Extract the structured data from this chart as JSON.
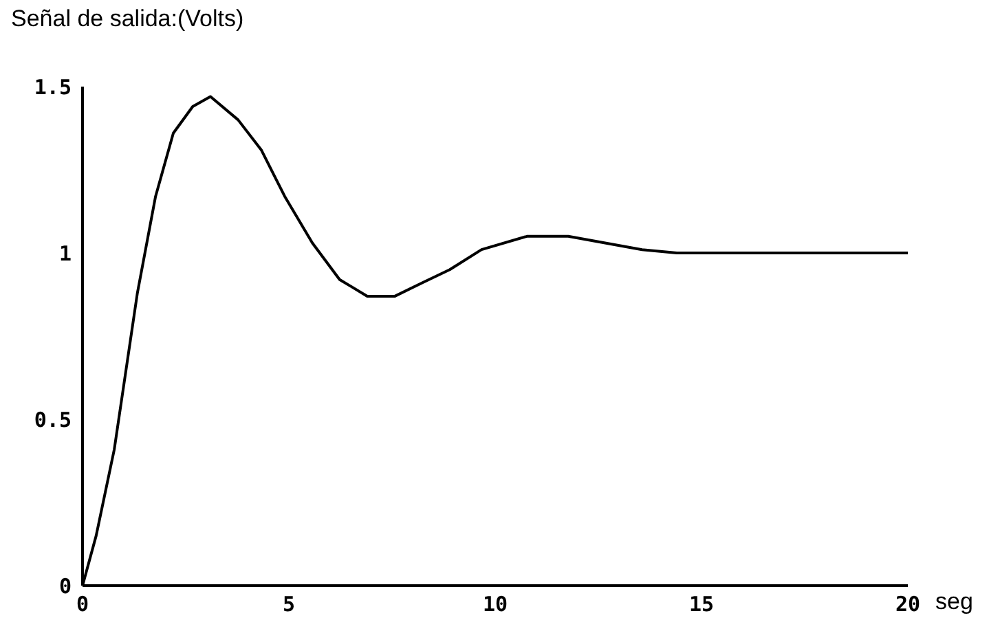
{
  "chart_data": {
    "type": "line",
    "title": "Señal de salida:(Volts)",
    "xlabel": "seg",
    "x": [
      0,
      0.33,
      0.77,
      1.33,
      1.77,
      2.2,
      2.67,
      3.1,
      3.77,
      4.33,
      4.9,
      5.57,
      6.23,
      6.9,
      7.57,
      8.23,
      8.9,
      9.67,
      10.77,
      11.77,
      13.56,
      14.4,
      16.9,
      20
    ],
    "series": [
      {
        "color": "#000000",
        "values": [
          0,
          0.15,
          0.41,
          0.88,
          1.17,
          1.36,
          1.44,
          1.47,
          1.4,
          1.31,
          1.17,
          1.03,
          0.92,
          0.87,
          0.87,
          0.91,
          0.95,
          1.01,
          1.05,
          1.05,
          1.01,
          1.0,
          1.0,
          1.0
        ]
      }
    ],
    "xlim": [
      0,
      20
    ],
    "xticks": [
      0,
      5,
      10,
      15,
      20
    ],
    "ylim": [
      0,
      1.5
    ],
    "yticks": [
      0,
      0.5,
      1,
      1.5
    ],
    "grid": false,
    "legend": false,
    "marker": "none",
    "line_style": "solid"
  }
}
